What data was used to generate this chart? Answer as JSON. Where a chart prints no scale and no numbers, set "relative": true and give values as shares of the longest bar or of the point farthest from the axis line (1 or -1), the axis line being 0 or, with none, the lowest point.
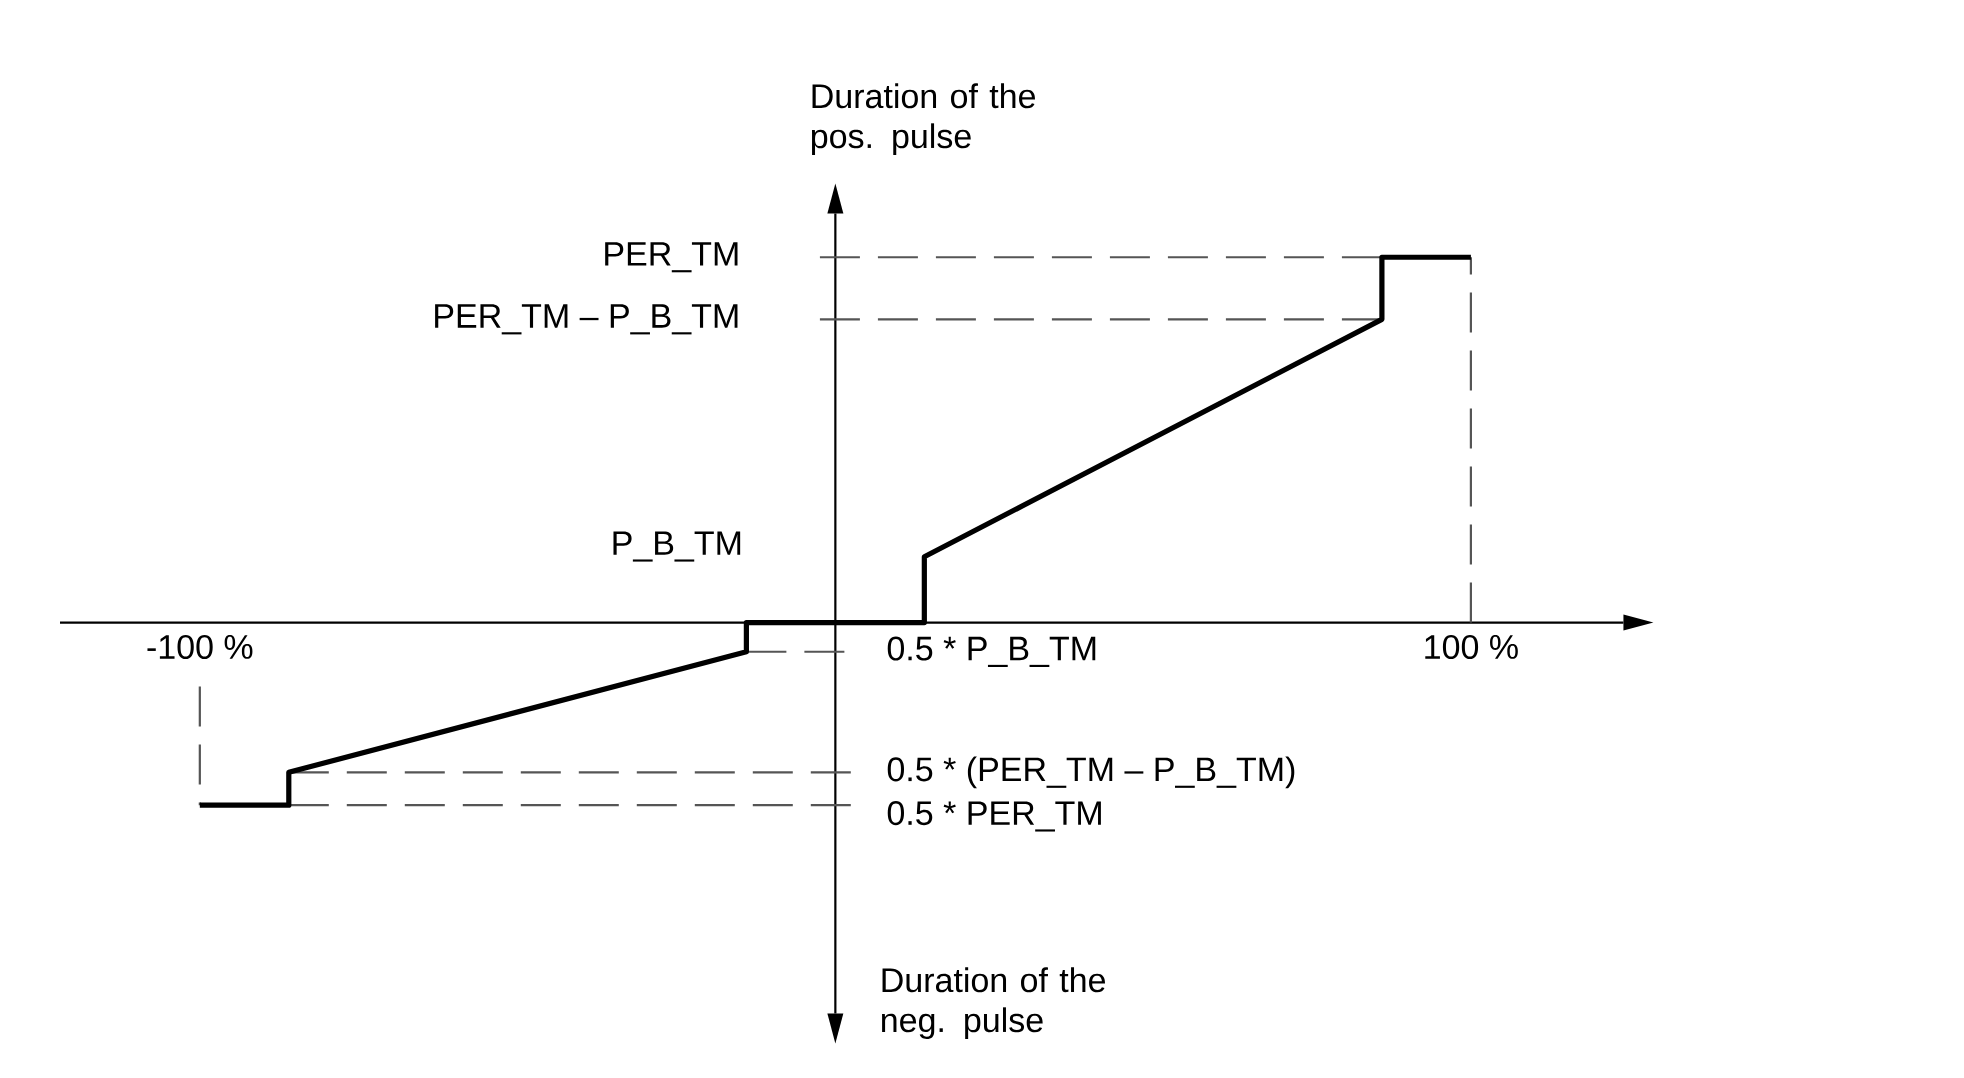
{
  "chart_data": {
    "type": "line",
    "relative": true,
    "ylabel": "Duration of the pos. pulse",
    "annotations": [
      "Duration of the neg. pulse",
      "P_B_TM"
    ],
    "x": [
      -100,
      -86,
      -86,
      -14,
      -14,
      14,
      14,
      86,
      86,
      100
    ],
    "values": [
      -0.5,
      -0.5,
      -0.41,
      -0.08,
      0,
      0,
      0.18,
      0.83,
      1,
      1
    ],
    "color": "#000000",
    "xlim": [
      -122,
      124
    ],
    "xticks": [
      {
        "value": -100,
        "label": "-100 %"
      },
      {
        "value": 100,
        "label": "100 %"
      }
    ],
    "ref_lines": [
      {
        "axis": "y",
        "value": 1,
        "label": "PER_TM",
        "line_style": "dashed",
        "color": "#555555"
      },
      {
        "axis": "y",
        "value": 0.83,
        "label": "PER_TM – P_B_TM",
        "line_style": "dashed",
        "color": "#555555"
      },
      {
        "axis": "y",
        "value": -0.08,
        "label": "0.5 * P_B_TM",
        "line_style": "dashed",
        "color": "#555555"
      },
      {
        "axis": "y",
        "value": -0.41,
        "label": "0.5 * (PER_TM – P_B_TM)",
        "line_style": "dashed",
        "color": "#555555"
      },
      {
        "axis": "y",
        "value": -0.5,
        "label": "0.5 * PER_TM",
        "line_style": "dashed",
        "color": "#555555"
      },
      {
        "axis": "x",
        "value": -100,
        "line_style": "dashed",
        "color": "#555555"
      },
      {
        "axis": "x",
        "value": 100,
        "line_style": "dashed",
        "color": "#555555"
      }
    ]
  }
}
